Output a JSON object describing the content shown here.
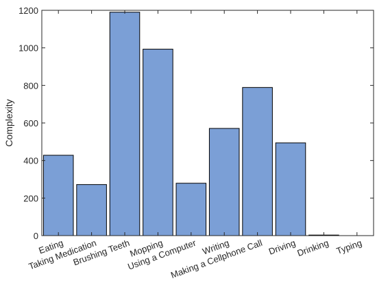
{
  "chart_data": {
    "type": "bar",
    "categories": [
      "Eating",
      "Taking Medication",
      "Brushing Teeth",
      "Mopping",
      "Using a Computer",
      "Writing",
      "Making a Cellphone Call",
      "Driving",
      "Drinking",
      "Typing"
    ],
    "values": [
      428,
      272,
      1190,
      993,
      279,
      571,
      789,
      494,
      3,
      0
    ],
    "title": "",
    "xlabel": "",
    "ylabel": "Complexity",
    "ylim": [
      0,
      1200
    ],
    "yticks": [
      0,
      200,
      400,
      600,
      800,
      1000,
      1200
    ],
    "grid": false,
    "legend": "none",
    "bar_color": "#7b9fd6",
    "edge_color": "#000000"
  }
}
